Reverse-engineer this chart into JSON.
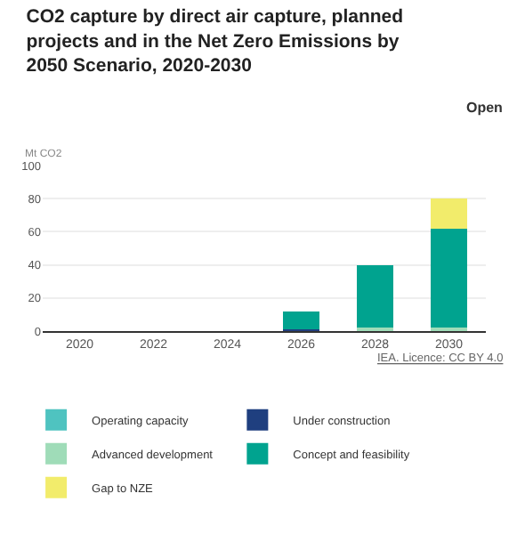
{
  "chart_data": {
    "type": "bar",
    "title": "CO2 capture by direct air capture, planned projects and in the Net Zero Emissions by 2050 Scenario, 2020-2030",
    "ylabel": "Mt CO2",
    "categories": [
      "2020",
      "2022",
      "2024",
      "2026",
      "2028",
      "2030"
    ],
    "stacked": true,
    "series": [
      {
        "name": "Operating capacity",
        "color": "#4fc3c0",
        "values": [
          0,
          0,
          0,
          0,
          0,
          0
        ]
      },
      {
        "name": "Under construction",
        "color": "#1f3f7f",
        "values": [
          0,
          0,
          0,
          1,
          0,
          0
        ]
      },
      {
        "name": "Advanced development",
        "color": "#9fdcb8",
        "values": [
          0,
          0,
          0,
          0,
          2,
          2
        ]
      },
      {
        "name": "Concept and feasibility",
        "color": "#00a38f",
        "values": [
          0,
          0,
          0,
          11,
          38,
          60
        ]
      },
      {
        "name": "Gap to NZE",
        "color": "#f2ec6b",
        "values": [
          0,
          0,
          0,
          0,
          0,
          18
        ]
      }
    ],
    "ylim": [
      0,
      100
    ],
    "yticks": [
      0,
      20,
      40,
      60,
      80,
      100
    ],
    "grid": "y",
    "legend": "bottom",
    "annotations": [
      "Open",
      "IEA. Licence: CC BY 4.0"
    ]
  }
}
